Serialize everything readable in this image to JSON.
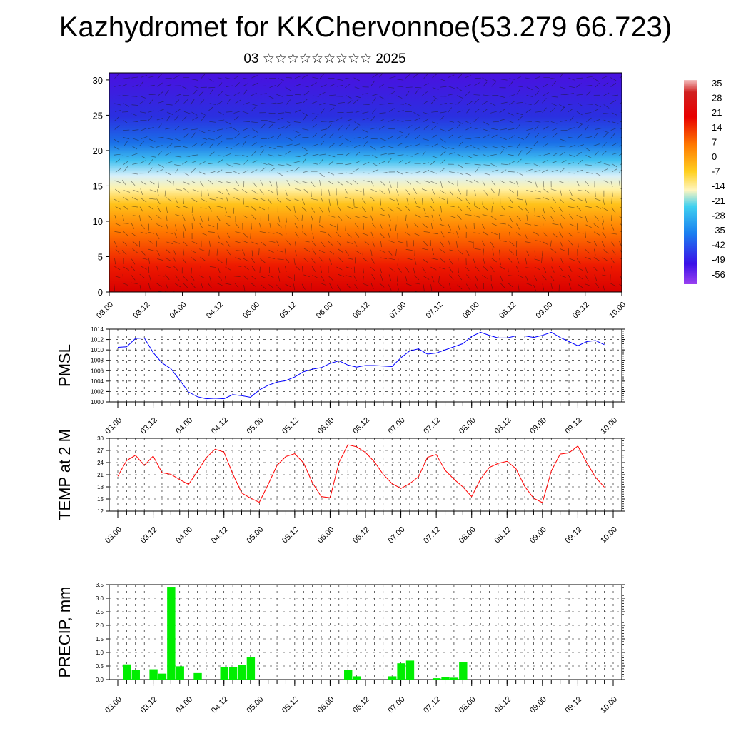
{
  "header": {
    "title": "Kazhydromet for KKChervonnoe(53.279 66.723)",
    "subtitle": "03 ☆☆☆☆☆☆☆☆☆ 2025"
  },
  "chart_data": [
    {
      "type": "heatmap",
      "title": "Kazhydromet for KKChervonnoe(53.279 66.723)",
      "subtitle": "03 ☆☆☆☆☆☆☆☆☆ 2025",
      "x_ticks": [
        "03.00",
        "03.12",
        "04.00",
        "04.12",
        "05.00",
        "05.12",
        "06.00",
        "06.12",
        "07.00",
        "07.12",
        "08.00",
        "08.12",
        "09.00",
        "09.12",
        "10.00"
      ],
      "y_ticks": [
        0,
        5,
        10,
        15,
        20,
        25,
        30
      ],
      "ylim": [
        0,
        31
      ],
      "colorbar_labels": [
        35,
        28,
        21,
        14,
        7,
        0,
        -7,
        -14,
        -21,
        -28,
        -35,
        -42,
        -49,
        -56
      ],
      "colors": {
        "warm": "#e60000",
        "mid_warm": "#ff9a00",
        "neutral": "#fff2a0",
        "cool": "#18b0f0",
        "cold": "#3a10e8",
        "top": "#f0b0b0",
        "bottom": "#9a40f0"
      },
      "overlay": "wind barbs"
    },
    {
      "type": "line",
      "ylabel": "PMSL",
      "ylim": [
        1000,
        1014
      ],
      "y_ticks": [
        1000,
        1002,
        1004,
        1006,
        1008,
        1010,
        1012,
        1014
      ],
      "x_ticks": [
        "03.00",
        "03.12",
        "04.00",
        "04.12",
        "05.00",
        "05.12",
        "06.00",
        "06.12",
        "07.00",
        "07.12",
        "08.00",
        "08.12",
        "09.00",
        "09.12",
        "10.00"
      ],
      "x": [
        0,
        1,
        2,
        3,
        4,
        5,
        6,
        7,
        8,
        9,
        10,
        11,
        12,
        13,
        14,
        15,
        16,
        17,
        18,
        19,
        20,
        21,
        22,
        23,
        24,
        25,
        26,
        27,
        28,
        29,
        30,
        31,
        32,
        33,
        34,
        35,
        36,
        37,
        38,
        39,
        40,
        41,
        42,
        43,
        44,
        45,
        46,
        47,
        48,
        49,
        50,
        51,
        52,
        53,
        54,
        55
      ],
      "series": [
        {
          "color": "#0000ff",
          "values": [
            1010.5,
            1010.6,
            1012.2,
            1012.3,
            1009.5,
            1007.5,
            1006.4,
            1004.2,
            1001.9,
            1001.0,
            1000.6,
            1000.7,
            1000.6,
            1001.4,
            1001.2,
            1000.9,
            1002.3,
            1003.2,
            1003.8,
            1004.1,
            1004.8,
            1005.8,
            1006.3,
            1006.6,
            1007.4,
            1007.9,
            1007.1,
            1006.7,
            1007.0,
            1007.0,
            1006.9,
            1006.8,
            1008.5,
            1009.8,
            1010.2,
            1009.2,
            1009.4,
            1010.0,
            1010.6,
            1011.2,
            1012.6,
            1013.4,
            1012.8,
            1012.3,
            1012.3,
            1012.7,
            1012.7,
            1012.4,
            1012.8,
            1013.4,
            1012.4,
            1011.6,
            1010.8,
            1011.6,
            1011.8,
            1011.0
          ]
        }
      ]
    },
    {
      "type": "line",
      "ylabel": "TEMP at 2 M",
      "ylim": [
        12,
        30
      ],
      "y_ticks": [
        12,
        15,
        18,
        21,
        24,
        27,
        30
      ],
      "x_ticks": [
        "03.00",
        "03.12",
        "04.00",
        "04.12",
        "05.00",
        "05.12",
        "06.00",
        "06.12",
        "07.00",
        "07.12",
        "08.00",
        "08.12",
        "09.00",
        "09.12",
        "10.00"
      ],
      "x": [
        0,
        1,
        2,
        3,
        4,
        5,
        6,
        7,
        8,
        9,
        10,
        11,
        12,
        13,
        14,
        15,
        16,
        17,
        18,
        19,
        20,
        21,
        22,
        23,
        24,
        25,
        26,
        27,
        28,
        29,
        30,
        31,
        32,
        33,
        34,
        35,
        36,
        37,
        38,
        39,
        40,
        41,
        42,
        43,
        44,
        45,
        46,
        47,
        48,
        49,
        50,
        51,
        52,
        53,
        54,
        55
      ],
      "series": [
        {
          "color": "#ff0000",
          "values": [
            20.6,
            24.5,
            25.8,
            23.3,
            25.6,
            21.5,
            21.1,
            19.8,
            18.6,
            21.8,
            25.2,
            27.3,
            26.6,
            21.2,
            16.5,
            15.2,
            14.2,
            18.6,
            23.3,
            25.5,
            26.2,
            23.9,
            19.0,
            15.6,
            15.3,
            24.0,
            28.4,
            27.9,
            26.5,
            24.2,
            21.1,
            18.8,
            17.6,
            18.8,
            20.5,
            25.3,
            26.0,
            22.1,
            19.9,
            18.0,
            15.6,
            19.9,
            22.8,
            23.8,
            24.3,
            22.5,
            18.1,
            15.2,
            14.1,
            21.9,
            26.1,
            26.4,
            28.1,
            24.0,
            20.4,
            17.9
          ]
        }
      ]
    },
    {
      "type": "bar",
      "ylabel": "PRECIP, mm",
      "ylim": [
        0,
        3.5
      ],
      "y_ticks": [
        "0.0",
        "0.5",
        "1.0",
        "1.5",
        "2.0",
        "2.5",
        "3.0",
        "3.5"
      ],
      "x_ticks": [
        "03.00",
        "03.12",
        "04.00",
        "04.12",
        "05.00",
        "05.12",
        "06.00",
        "06.12",
        "07.00",
        "07.12",
        "08.00",
        "08.12",
        "09.00",
        "09.12",
        "10.00"
      ],
      "bar_color": "#00ee00",
      "bars": [
        {
          "x": 1,
          "value": 0.56
        },
        {
          "x": 2,
          "value": 0.36
        },
        {
          "x": 4,
          "value": 0.38
        },
        {
          "x": 5,
          "value": 0.22
        },
        {
          "x": 6,
          "value": 3.42
        },
        {
          "x": 7,
          "value": 0.49
        },
        {
          "x": 9,
          "value": 0.24
        },
        {
          "x": 12,
          "value": 0.46
        },
        {
          "x": 13,
          "value": 0.45
        },
        {
          "x": 14,
          "value": 0.54
        },
        {
          "x": 15,
          "value": 0.82
        },
        {
          "x": 26,
          "value": 0.35
        },
        {
          "x": 27,
          "value": 0.12
        },
        {
          "x": 31,
          "value": 0.12
        },
        {
          "x": 32,
          "value": 0.6
        },
        {
          "x": 33,
          "value": 0.7
        },
        {
          "x": 36,
          "value": 0.05
        },
        {
          "x": 37,
          "value": 0.1
        },
        {
          "x": 38,
          "value": 0.07
        },
        {
          "x": 39,
          "value": 0.65
        }
      ]
    }
  ]
}
